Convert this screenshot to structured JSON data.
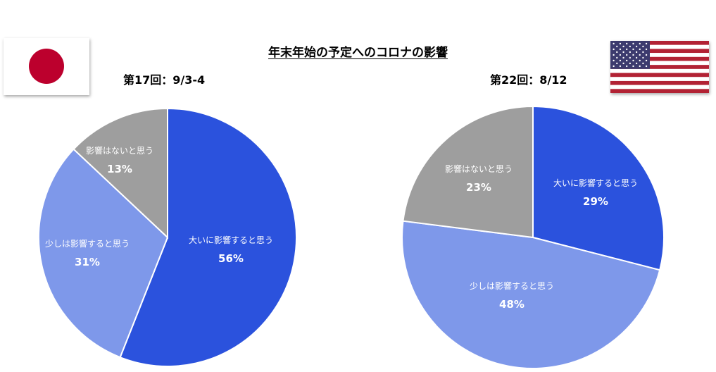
{
  "title": "年末年始の予定へのコロナの影響",
  "colors": {
    "large": "#2b52dd",
    "some": "#7e98ea",
    "none": "#9e9e9e",
    "jp_red": "#bc002d",
    "us_red": "#b22234",
    "us_blue": "#3c3b6e"
  },
  "flags": {
    "left": "japan-flag",
    "right": "usa-flag"
  },
  "chart_data": [
    {
      "type": "pie",
      "title": "第17回：9/3-4",
      "slices": [
        {
          "label": "大いに影響すると思う",
          "value": 56,
          "value_label": "56%",
          "color": "#2b52dd"
        },
        {
          "label": "少しは影響すると思う",
          "value": 31,
          "value_label": "31%",
          "color": "#7e98ea"
        },
        {
          "label": "影響はないと思う",
          "value": 13,
          "value_label": "13%",
          "color": "#9e9e9e"
        }
      ]
    },
    {
      "type": "pie",
      "title": "第22回：8/12",
      "slices": [
        {
          "label": "大いに影響すると思う",
          "value": 29,
          "value_label": "29%",
          "color": "#2b52dd"
        },
        {
          "label": "少しは影響すると思う",
          "value": 48,
          "value_label": "48%",
          "color": "#7e98ea"
        },
        {
          "label": "影響はないと思う",
          "value": 23,
          "value_label": "23%",
          "color": "#9e9e9e"
        }
      ]
    }
  ]
}
